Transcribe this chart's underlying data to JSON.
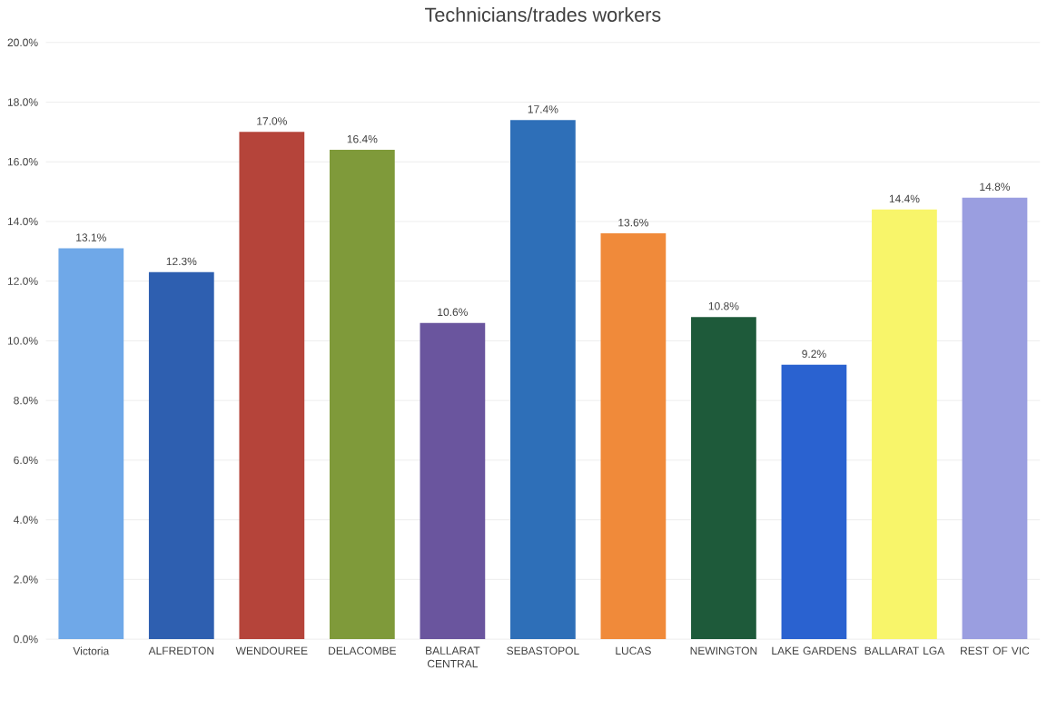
{
  "chart_data": {
    "type": "bar",
    "title": "Technicians/trades workers",
    "categories": [
      "Victoria",
      "ALFREDTON",
      "WENDOUREE",
      "DELACOMBE",
      "BALLARAT CENTRAL",
      "SEBASTOPOL",
      "LUCAS",
      "NEWINGTON",
      "LAKE GARDENS",
      "BALLARAT LGA",
      "REST OF VIC"
    ],
    "values": [
      13.1,
      12.3,
      17.0,
      16.4,
      10.6,
      17.4,
      13.6,
      10.8,
      9.2,
      14.4,
      14.8
    ],
    "colors": [
      "#6fa8e8",
      "#2e5fb0",
      "#b5443a",
      "#7f9a3a",
      "#6a559e",
      "#2e6fb8",
      "#f08a3a",
      "#1e5a3a",
      "#2a62d0",
      "#f8f56a",
      "#9a9ee0"
    ],
    "value_labels": [
      "13.1%",
      "12.3%",
      "17.0%",
      "16.4%",
      "10.6%",
      "17.4%",
      "13.6%",
      "10.8%",
      "9.2%",
      "14.4%",
      "14.8%"
    ],
    "ylim": [
      0,
      20
    ],
    "yticks": [
      {
        "value": 0,
        "label": "0.0%"
      },
      {
        "value": 2,
        "label": "2.0%"
      },
      {
        "value": 4,
        "label": "4.0%"
      },
      {
        "value": 6,
        "label": "6.0%"
      },
      {
        "value": 8,
        "label": "8.0%"
      },
      {
        "value": 10,
        "label": "10.0%"
      },
      {
        "value": 12,
        "label": "12.0%"
      },
      {
        "value": 14,
        "label": "14.0%"
      },
      {
        "value": 16,
        "label": "16.0%"
      },
      {
        "value": 18,
        "label": "18.0%"
      },
      {
        "value": 20,
        "label": "20.0%"
      }
    ],
    "grid": "y"
  }
}
